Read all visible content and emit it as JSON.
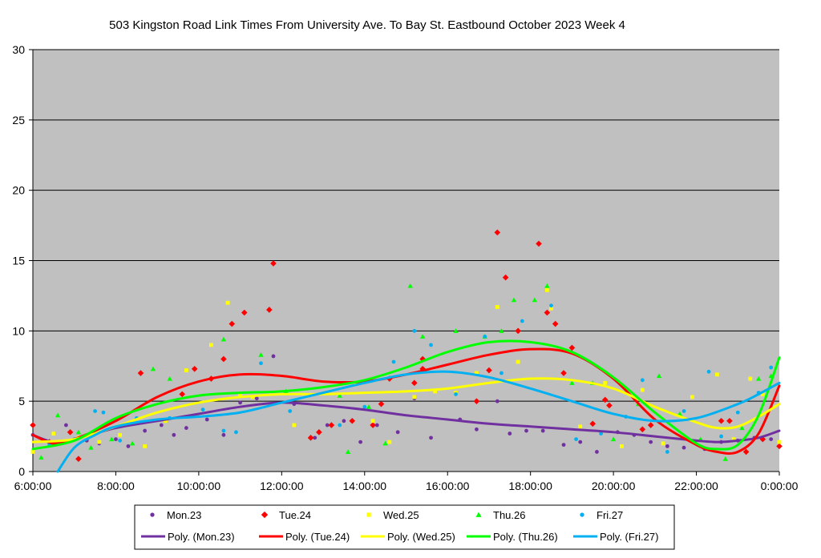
{
  "chart_data": {
    "type": "scatter",
    "title": "503 Kingston Road Link Times From University Ave. To Bay St. Eastbound October 2023  Week 4",
    "xlabel": "",
    "ylabel": "",
    "x_range_hours": [
      6,
      24
    ],
    "ylim": [
      0,
      30
    ],
    "y_ticks": [
      0,
      5,
      10,
      15,
      20,
      25,
      30
    ],
    "x_ticks": [
      {
        "h": 6,
        "label": "6:00:00"
      },
      {
        "h": 8,
        "label": "8:00:00"
      },
      {
        "h": 10,
        "label": "10:00:00"
      },
      {
        "h": 12,
        "label": "12:00:00"
      },
      {
        "h": 14,
        "label": "14:00:00"
      },
      {
        "h": 16,
        "label": "16:00:00"
      },
      {
        "h": 18,
        "label": "18:00:00"
      },
      {
        "h": 20,
        "label": "20:00:00"
      },
      {
        "h": 22,
        "label": "22:00:00"
      },
      {
        "h": 24,
        "label": "0:00:00"
      }
    ],
    "grid": "horizontal",
    "plot_background": "#c0c0c0",
    "legend_position": "bottom",
    "series": [
      {
        "name": "Mon.23",
        "color": "#7030a0",
        "marker": "circle",
        "points": [
          [
            6.0,
            2.6
          ],
          [
            6.5,
            1.9
          ],
          [
            6.8,
            3.3
          ],
          [
            7.3,
            2.2
          ],
          [
            7.6,
            2.0
          ],
          [
            8.0,
            2.3
          ],
          [
            8.3,
            1.8
          ],
          [
            8.7,
            2.9
          ],
          [
            9.1,
            3.3
          ],
          [
            9.4,
            2.6
          ],
          [
            9.7,
            3.1
          ],
          [
            10.2,
            3.7
          ],
          [
            10.6,
            2.6
          ],
          [
            11.0,
            4.9
          ],
          [
            11.4,
            5.2
          ],
          [
            11.8,
            8.2
          ],
          [
            12.3,
            4.8
          ],
          [
            12.8,
            2.4
          ],
          [
            13.1,
            3.3
          ],
          [
            13.5,
            3.6
          ],
          [
            13.9,
            2.1
          ],
          [
            14.3,
            3.3
          ],
          [
            14.8,
            2.8
          ],
          [
            15.2,
            5.2
          ],
          [
            15.6,
            2.4
          ],
          [
            16.3,
            3.7
          ],
          [
            16.7,
            3.0
          ],
          [
            17.2,
            5.0
          ],
          [
            17.5,
            2.7
          ],
          [
            17.9,
            2.9
          ],
          [
            18.3,
            2.9
          ],
          [
            18.8,
            1.9
          ],
          [
            19.2,
            2.1
          ],
          [
            19.6,
            1.4
          ],
          [
            20.1,
            2.8
          ],
          [
            20.5,
            2.6
          ],
          [
            20.9,
            2.1
          ],
          [
            21.3,
            1.8
          ],
          [
            21.7,
            1.7
          ],
          [
            22.2,
            1.6
          ],
          [
            22.6,
            2.1
          ],
          [
            23.0,
            2.2
          ],
          [
            23.4,
            2.4
          ],
          [
            23.8,
            2.3
          ]
        ],
        "trend": [
          [
            6,
            2.6
          ],
          [
            6.5,
            2.1
          ],
          [
            7,
            2.3
          ],
          [
            8,
            3.1
          ],
          [
            9,
            3.6
          ],
          [
            10,
            4.1
          ],
          [
            11,
            4.6
          ],
          [
            12,
            4.9
          ],
          [
            13,
            4.7
          ],
          [
            14,
            4.4
          ],
          [
            15,
            4.0
          ],
          [
            16,
            3.7
          ],
          [
            17,
            3.4
          ],
          [
            18,
            3.2
          ],
          [
            19,
            3.0
          ],
          [
            20,
            2.8
          ],
          [
            21,
            2.5
          ],
          [
            22,
            2.2
          ],
          [
            22.5,
            2.1
          ],
          [
            23,
            2.2
          ],
          [
            23.5,
            2.4
          ],
          [
            24,
            2.9
          ]
        ]
      },
      {
        "name": "Tue.24",
        "color": "#ff0000",
        "marker": "diamond",
        "points": [
          [
            6.0,
            3.3
          ],
          [
            6.4,
            2.1
          ],
          [
            6.9,
            2.8
          ],
          [
            7.1,
            0.9
          ],
          [
            8.6,
            7.0
          ],
          [
            9.6,
            5.5
          ],
          [
            9.9,
            7.3
          ],
          [
            10.3,
            6.6
          ],
          [
            10.6,
            8.0
          ],
          [
            10.8,
            10.5
          ],
          [
            11.1,
            11.3
          ],
          [
            11.7,
            11.5
          ],
          [
            11.8,
            14.8
          ],
          [
            12.7,
            2.4
          ],
          [
            12.9,
            2.8
          ],
          [
            13.2,
            3.3
          ],
          [
            13.7,
            3.6
          ],
          [
            14.2,
            3.3
          ],
          [
            14.4,
            4.8
          ],
          [
            14.6,
            6.6
          ],
          [
            15.2,
            6.3
          ],
          [
            15.4,
            7.3
          ],
          [
            15.4,
            8.0
          ],
          [
            16.7,
            5.0
          ],
          [
            17.0,
            7.2
          ],
          [
            17.2,
            17.0
          ],
          [
            17.4,
            13.8
          ],
          [
            17.7,
            10.0
          ],
          [
            18.2,
            16.2
          ],
          [
            18.4,
            11.3
          ],
          [
            18.6,
            10.5
          ],
          [
            18.8,
            7.0
          ],
          [
            19.0,
            8.8
          ],
          [
            19.5,
            3.4
          ],
          [
            19.8,
            5.1
          ],
          [
            19.9,
            4.7
          ],
          [
            20.7,
            3.0
          ],
          [
            20.9,
            3.3
          ],
          [
            22.6,
            3.6
          ],
          [
            22.8,
            3.6
          ],
          [
            23.2,
            1.4
          ],
          [
            23.6,
            2.3
          ],
          [
            24.0,
            1.8
          ]
        ],
        "trend": [
          [
            6,
            2.6
          ],
          [
            6.5,
            2.0
          ],
          [
            7,
            2.3
          ],
          [
            8,
            3.6
          ],
          [
            9,
            5.3
          ],
          [
            10,
            6.4
          ],
          [
            11,
            6.9
          ],
          [
            12,
            6.8
          ],
          [
            13,
            6.4
          ],
          [
            14,
            6.4
          ],
          [
            15,
            6.9
          ],
          [
            16,
            7.6
          ],
          [
            17,
            8.3
          ],
          [
            18,
            8.7
          ],
          [
            19,
            8.4
          ],
          [
            20,
            6.6
          ],
          [
            21,
            3.7
          ],
          [
            22,
            1.9
          ],
          [
            22.5,
            1.4
          ],
          [
            23,
            1.4
          ],
          [
            23.5,
            2.7
          ],
          [
            24,
            6.1
          ]
        ]
      },
      {
        "name": "Wed.25",
        "color": "#ffff00",
        "marker": "square",
        "points": [
          [
            6.0,
            1.4
          ],
          [
            6.5,
            2.7
          ],
          [
            7.1,
            2.4
          ],
          [
            7.6,
            2.1
          ],
          [
            8.1,
            2.6
          ],
          [
            8.7,
            1.8
          ],
          [
            9.2,
            3.6
          ],
          [
            9.7,
            7.2
          ],
          [
            10.3,
            9.0
          ],
          [
            10.7,
            12.0
          ],
          [
            11.0,
            5.5
          ],
          [
            11.3,
            5.3
          ],
          [
            12.3,
            3.3
          ],
          [
            13.8,
            6.3
          ],
          [
            14.2,
            3.6
          ],
          [
            14.6,
            2.1
          ],
          [
            15.2,
            5.3
          ],
          [
            15.7,
            5.7
          ],
          [
            16.2,
            5.6
          ],
          [
            16.7,
            7.0
          ],
          [
            17.2,
            11.7
          ],
          [
            17.7,
            7.8
          ],
          [
            18.4,
            12.9
          ],
          [
            18.5,
            11.6
          ],
          [
            19.2,
            3.2
          ],
          [
            19.8,
            6.3
          ],
          [
            20.2,
            1.8
          ],
          [
            20.7,
            5.8
          ],
          [
            21.2,
            2.0
          ],
          [
            21.9,
            5.3
          ],
          [
            22.5,
            6.9
          ],
          [
            22.9,
            2.3
          ],
          [
            23.3,
            6.6
          ],
          [
            23.6,
            5.5
          ],
          [
            24.0,
            2.1
          ]
        ],
        "trend": [
          [
            6,
            2.1
          ],
          [
            7,
            2.3
          ],
          [
            8,
            3.2
          ],
          [
            9,
            4.2
          ],
          [
            10,
            4.9
          ],
          [
            11,
            5.3
          ],
          [
            12,
            5.5
          ],
          [
            13,
            5.5
          ],
          [
            14,
            5.6
          ],
          [
            15,
            5.7
          ],
          [
            16,
            5.9
          ],
          [
            17,
            6.3
          ],
          [
            18,
            6.6
          ],
          [
            19,
            6.5
          ],
          [
            20,
            5.9
          ],
          [
            21,
            4.6
          ],
          [
            22,
            3.5
          ],
          [
            22.5,
            3.1
          ],
          [
            23,
            3.2
          ],
          [
            23.5,
            3.9
          ],
          [
            24,
            4.8
          ]
        ]
      },
      {
        "name": "Thu.26",
        "color": "#00ff00",
        "marker": "triangle",
        "points": [
          [
            6.2,
            1.0
          ],
          [
            6.6,
            4.0
          ],
          [
            7.1,
            2.8
          ],
          [
            7.4,
            1.7
          ],
          [
            7.9,
            2.3
          ],
          [
            8.4,
            2.0
          ],
          [
            8.9,
            7.3
          ],
          [
            9.3,
            6.6
          ],
          [
            10.6,
            9.4
          ],
          [
            11.5,
            8.3
          ],
          [
            12.1,
            5.7
          ],
          [
            13.4,
            5.4
          ],
          [
            13.6,
            1.4
          ],
          [
            14.1,
            4.6
          ],
          [
            14.5,
            2.0
          ],
          [
            15.1,
            13.2
          ],
          [
            15.4,
            9.6
          ],
          [
            16.2,
            10.0
          ],
          [
            16.9,
            9.6
          ],
          [
            17.3,
            10.0
          ],
          [
            17.6,
            12.2
          ],
          [
            18.1,
            12.2
          ],
          [
            18.4,
            13.2
          ],
          [
            19.0,
            6.3
          ],
          [
            19.5,
            6.3
          ],
          [
            20.0,
            2.3
          ],
          [
            20.6,
            4.8
          ],
          [
            21.1,
            6.8
          ],
          [
            21.6,
            4.1
          ],
          [
            22.1,
            2.3
          ],
          [
            22.7,
            0.9
          ],
          [
            23.1,
            3.1
          ],
          [
            23.5,
            6.6
          ],
          [
            23.8,
            6.8
          ]
        ],
        "trend": [
          [
            6,
            1.6
          ],
          [
            7,
            2.2
          ],
          [
            8,
            3.8
          ],
          [
            9,
            4.8
          ],
          [
            10,
            5.4
          ],
          [
            11,
            5.6
          ],
          [
            12,
            5.7
          ],
          [
            13,
            6.0
          ],
          [
            14,
            6.5
          ],
          [
            15,
            7.4
          ],
          [
            16,
            8.5
          ],
          [
            17,
            9.2
          ],
          [
            18,
            9.2
          ],
          [
            19,
            8.5
          ],
          [
            20,
            6.7
          ],
          [
            21,
            4.2
          ],
          [
            22,
            2.0
          ],
          [
            22.5,
            1.6
          ],
          [
            23,
            1.9
          ],
          [
            23.5,
            4.0
          ],
          [
            24,
            8.1
          ]
        ]
      },
      {
        "name": "Fri.27",
        "color": "#00b0f0",
        "marker": "circle",
        "points": [
          [
            6.4,
            1.9
          ],
          [
            7.0,
            2.3
          ],
          [
            7.5,
            4.3
          ],
          [
            7.7,
            4.2
          ],
          [
            8.1,
            2.2
          ],
          [
            8.5,
            3.8
          ],
          [
            9.3,
            3.8
          ],
          [
            10.1,
            4.4
          ],
          [
            10.6,
            2.9
          ],
          [
            10.9,
            2.8
          ],
          [
            11.5,
            7.7
          ],
          [
            12.2,
            4.3
          ],
          [
            13.4,
            3.3
          ],
          [
            14.0,
            4.6
          ],
          [
            14.7,
            7.8
          ],
          [
            15.2,
            10.0
          ],
          [
            15.6,
            9.0
          ],
          [
            16.2,
            5.5
          ],
          [
            16.9,
            9.6
          ],
          [
            17.3,
            7.0
          ],
          [
            17.8,
            10.7
          ],
          [
            18.5,
            11.8
          ],
          [
            19.1,
            2.3
          ],
          [
            19.7,
            2.7
          ],
          [
            20.3,
            3.9
          ],
          [
            20.7,
            6.5
          ],
          [
            21.3,
            1.4
          ],
          [
            21.7,
            4.3
          ],
          [
            22.3,
            7.1
          ],
          [
            22.6,
            2.5
          ],
          [
            23.0,
            4.2
          ],
          [
            23.5,
            5.6
          ],
          [
            23.8,
            7.4
          ]
        ],
        "trend": [
          [
            6.6,
            0.0
          ],
          [
            7,
            1.7
          ],
          [
            7.5,
            2.6
          ],
          [
            8,
            3.2
          ],
          [
            9,
            3.7
          ],
          [
            10,
            3.9
          ],
          [
            11,
            4.2
          ],
          [
            12,
            4.9
          ],
          [
            13,
            5.6
          ],
          [
            14,
            6.3
          ],
          [
            15,
            6.9
          ],
          [
            16,
            7.1
          ],
          [
            17,
            6.7
          ],
          [
            18,
            5.9
          ],
          [
            19,
            5.0
          ],
          [
            20,
            4.1
          ],
          [
            21,
            3.6
          ],
          [
            22,
            3.8
          ],
          [
            23,
            4.8
          ],
          [
            23.5,
            5.5
          ],
          [
            24,
            6.3
          ]
        ]
      }
    ],
    "trend_legend": [
      "Poly. (Mon.23)",
      "Poly. (Tue.24)",
      "Poly. (Wed.25)",
      "Poly. (Thu.26)",
      "Poly. (Fri.27)"
    ]
  }
}
